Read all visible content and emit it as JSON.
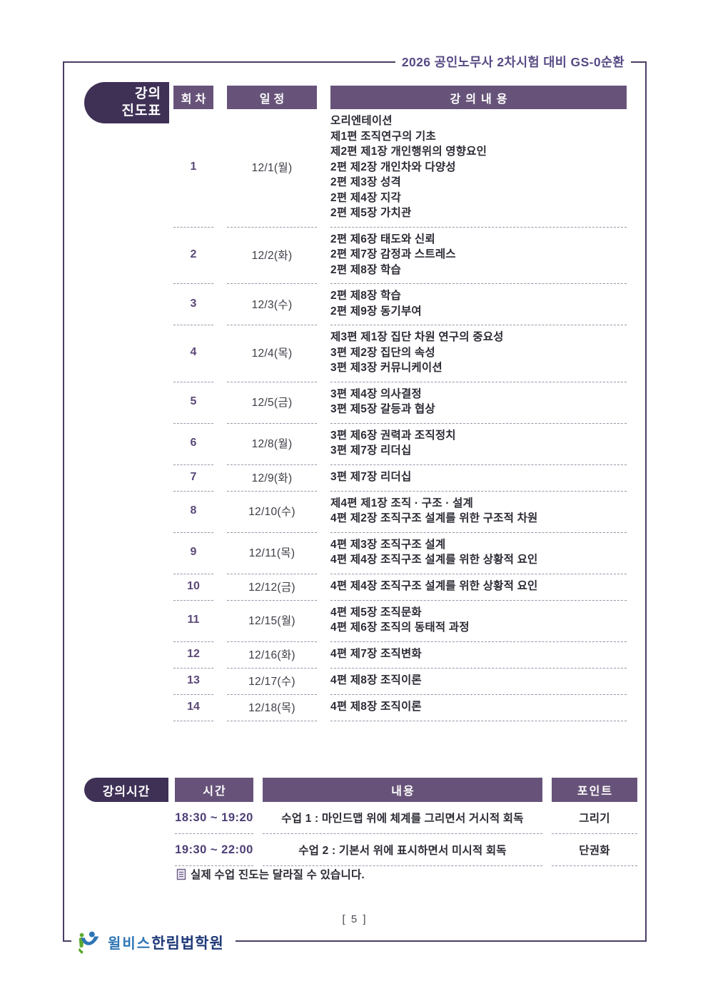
{
  "page": {
    "header_title": "2026 공인노무사 2차시험 대비 GS-0순환",
    "page_number": "[ 5 ]",
    "footnote": "실제 수업 진도는 달라질 수 있습니다.",
    "logo": {
      "brand": "윌비스",
      "brand_bold": "한림법학원"
    }
  },
  "colors": {
    "badge_dark_purple": "#3f3156",
    "header_purple": "#675379",
    "title_purple": "#584a85",
    "frame_border": "#4a3d63",
    "logo_blue": "#2e75b6",
    "logo_navy": "#1e3a78",
    "logo_green": "#5aaa2f"
  },
  "schedule": {
    "badge": {
      "line1": "강의",
      "line2": "진도표"
    },
    "columns": {
      "session": "회차",
      "date": "일정",
      "content": "강의내용"
    },
    "rows": [
      {
        "no": "1",
        "date": "12/1(월)",
        "items": [
          "오리엔테이션",
          "제1편 조직연구의 기초",
          "제2편 제1장 개인행위의 영향요인",
          "2편 제2장 개인차와 다양성",
          "2편 제3장 성격",
          "2편 제4장 지각",
          "2편 제5장 가치관"
        ]
      },
      {
        "no": "2",
        "date": "12/2(화)",
        "items": [
          "2편 제6장 태도와 신뢰",
          "2편 제7장 감정과 스트레스",
          "2편 제8장 학습"
        ]
      },
      {
        "no": "3",
        "date": "12/3(수)",
        "items": [
          "2편 제8장 학습",
          "2편 제9장 동기부여"
        ]
      },
      {
        "no": "4",
        "date": "12/4(목)",
        "items": [
          "제3편 제1장 집단 차원 연구의 중요성",
          "3편 제2장 집단의 속성",
          "3편 제3장 커뮤니케이션"
        ]
      },
      {
        "no": "5",
        "date": "12/5(금)",
        "items": [
          "3편 제4장 의사결정",
          "3편 제5장 갈등과 협상"
        ]
      },
      {
        "no": "6",
        "date": "12/8(월)",
        "items": [
          "3편 제6장 권력과 조직정치",
          "3편 제7장 리더십"
        ]
      },
      {
        "no": "7",
        "date": "12/9(화)",
        "items": [
          "3편 제7장 리더십"
        ]
      },
      {
        "no": "8",
        "date": "12/10(수)",
        "items": [
          "제4편 제1장 조직 · 구조 · 설계",
          "4편 제2장 조직구조 설계를 위한 구조적 차원"
        ]
      },
      {
        "no": "9",
        "date": "12/11(목)",
        "items": [
          "4편 제3장 조직구조 설계",
          "4편 제4장 조직구조 설계를 위한 상황적 요인"
        ]
      },
      {
        "no": "10",
        "date": "12/12(금)",
        "items": [
          "4편 제4장 조직구조 설계를 위한 상황적 요인"
        ]
      },
      {
        "no": "11",
        "date": "12/15(월)",
        "items": [
          "4편 제5장 조직문화",
          "4편 제6장 조직의 동태적 과정"
        ]
      },
      {
        "no": "12",
        "date": "12/16(화)",
        "items": [
          "4편 제7장 조직변화"
        ]
      },
      {
        "no": "13",
        "date": "12/17(수)",
        "items": [
          "4편 제8장 조직이론"
        ]
      },
      {
        "no": "14",
        "date": "12/18(목)",
        "items": [
          "4편 제8장 조직이론"
        ]
      }
    ]
  },
  "time_table": {
    "badge": "강의시간",
    "columns": {
      "time": "시간",
      "content": "내용",
      "point": "포인트"
    },
    "rows": [
      {
        "time": "18:30 ~ 19:20",
        "content": "수업 1 : 마인드맵 위에 체계를 그리면서 거시적 회독",
        "point": "그리기"
      },
      {
        "time": "19:30 ~ 22:00",
        "content": "수업 2 : 기본서 위에 표시하면서 미시적 회독",
        "point": "단권화"
      }
    ]
  }
}
